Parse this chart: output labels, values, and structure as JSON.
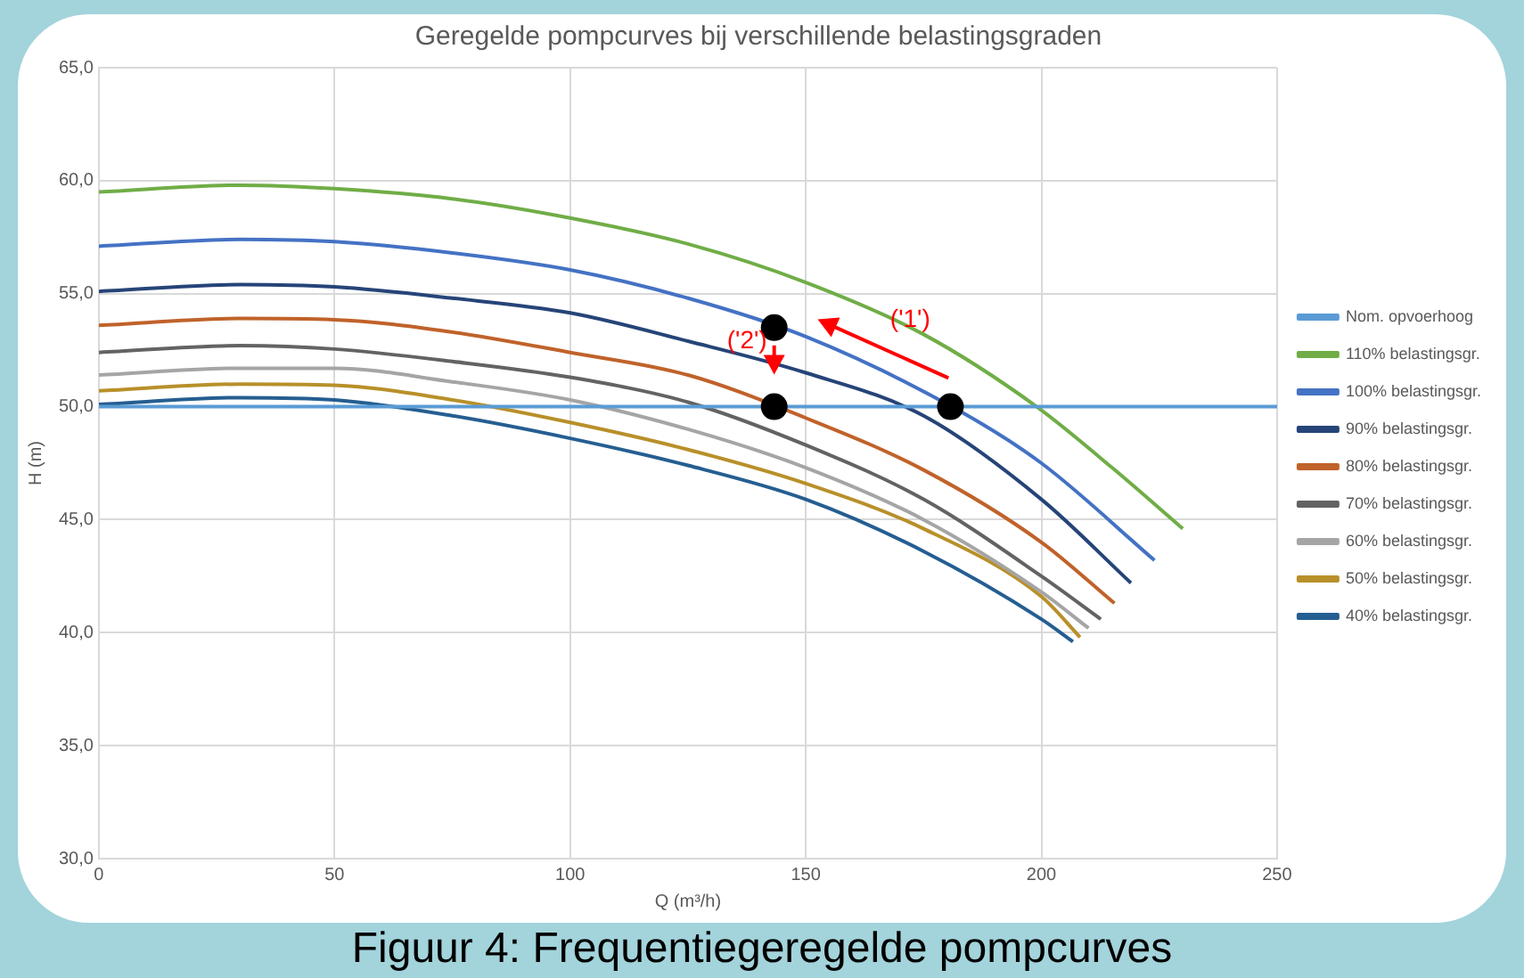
{
  "chart_data": {
    "type": "line",
    "title": "Geregelde pompcurves bij verschillende belastingsgraden",
    "xlabel": "Q (m³/h)",
    "ylabel": "H (m)",
    "xlim": [
      0,
      250
    ],
    "xticks": [
      0,
      50,
      100,
      150,
      200,
      250
    ],
    "ylim": [
      30,
      65
    ],
    "yticks": [
      {
        "value": 30,
        "label": "30,0"
      },
      {
        "value": 35,
        "label": "35,0"
      },
      {
        "value": 40,
        "label": "40,0"
      },
      {
        "value": 45,
        "label": "45,0"
      },
      {
        "value": 50,
        "label": "50,0"
      },
      {
        "value": 55,
        "label": "55,0"
      },
      {
        "value": 60,
        "label": "60,0"
      },
      {
        "value": 65,
        "label": "65,0"
      }
    ],
    "grid": true,
    "legend": "right",
    "marker": "none",
    "line_style": "solid",
    "series": [
      {
        "name": "Nom. opvoerhoog",
        "color": "#5b9bd5",
        "x": [
          0,
          250
        ],
        "values": [
          50,
          50
        ]
      },
      {
        "name": "110% belastingsgr.",
        "color": "#70ad47",
        "x": [
          0,
          30,
          50,
          75,
          100,
          125,
          150,
          175,
          199,
          215,
          230
        ],
        "values": [
          59.5,
          59.8,
          59.65,
          59.2,
          58.35,
          57.2,
          55.5,
          53.2,
          50.0,
          47.3,
          44.6
        ]
      },
      {
        "name": "100% belastingsgr.",
        "color": "#4472c4",
        "x": [
          0,
          30,
          50,
          75,
          100,
          125,
          150,
          181,
          200,
          224
        ],
        "values": [
          57.1,
          57.4,
          57.3,
          56.8,
          56.05,
          54.8,
          53.1,
          50.0,
          47.5,
          43.2
        ]
      },
      {
        "name": "90% belastingsgr.",
        "color": "#264478",
        "x": [
          0,
          30,
          50,
          75,
          100,
          125,
          150,
          175,
          200,
          219
        ],
        "values": [
          55.1,
          55.4,
          55.3,
          54.8,
          54.15,
          52.9,
          51.5,
          49.6,
          45.9,
          42.2
        ]
      },
      {
        "name": "80% belastingsgr.",
        "color": "#c0622a",
        "x": [
          0,
          30,
          50,
          75,
          100,
          125,
          150,
          175,
          200,
          215.5
        ],
        "values": [
          53.6,
          53.9,
          53.85,
          53.3,
          52.4,
          51.4,
          49.5,
          47.2,
          44.0,
          41.3
        ]
      },
      {
        "name": "70% belastingsgr.",
        "color": "#636363",
        "x": [
          0,
          30,
          50,
          75,
          100,
          125,
          150,
          175,
          200,
          212.6
        ],
        "values": [
          52.4,
          52.7,
          52.55,
          52.0,
          51.3,
          50.2,
          48.3,
          45.9,
          42.5,
          40.6
        ]
      },
      {
        "name": "60% belastingsgr.",
        "color": "#a5a5a5",
        "x": [
          0,
          30,
          50,
          75,
          100,
          125,
          150,
          175,
          200,
          210
        ],
        "values": [
          51.4,
          51.7,
          51.7,
          51.1,
          50.3,
          49.0,
          47.3,
          45.0,
          41.8,
          40.2
        ]
      },
      {
        "name": "50% belastingsgr.",
        "color": "#b8902a",
        "x": [
          0,
          30,
          50,
          75,
          100,
          125,
          150,
          175,
          200,
          208.2
        ],
        "values": [
          50.7,
          51.0,
          50.95,
          50.3,
          49.3,
          48.1,
          46.6,
          44.6,
          41.6,
          39.8
        ]
      },
      {
        "name": "40% belastingsgr.",
        "color": "#255e91",
        "x": [
          0,
          30,
          50,
          75,
          100,
          125,
          150,
          175,
          200,
          206.7
        ],
        "values": [
          50.1,
          50.4,
          50.3,
          49.6,
          48.6,
          47.4,
          45.9,
          43.6,
          40.6,
          39.6
        ]
      },
      {
        "type": "scatter",
        "marker": "circle",
        "color": "#000000",
        "x": [
          180.7,
          143.3,
          143.3
        ],
        "values": [
          50.0,
          53.5,
          50.0
        ]
      }
    ],
    "annotations": [
      "('1')",
      "('2')",
      "Figuur 4: Frequentiegeregelde pompcurves"
    ]
  }
}
